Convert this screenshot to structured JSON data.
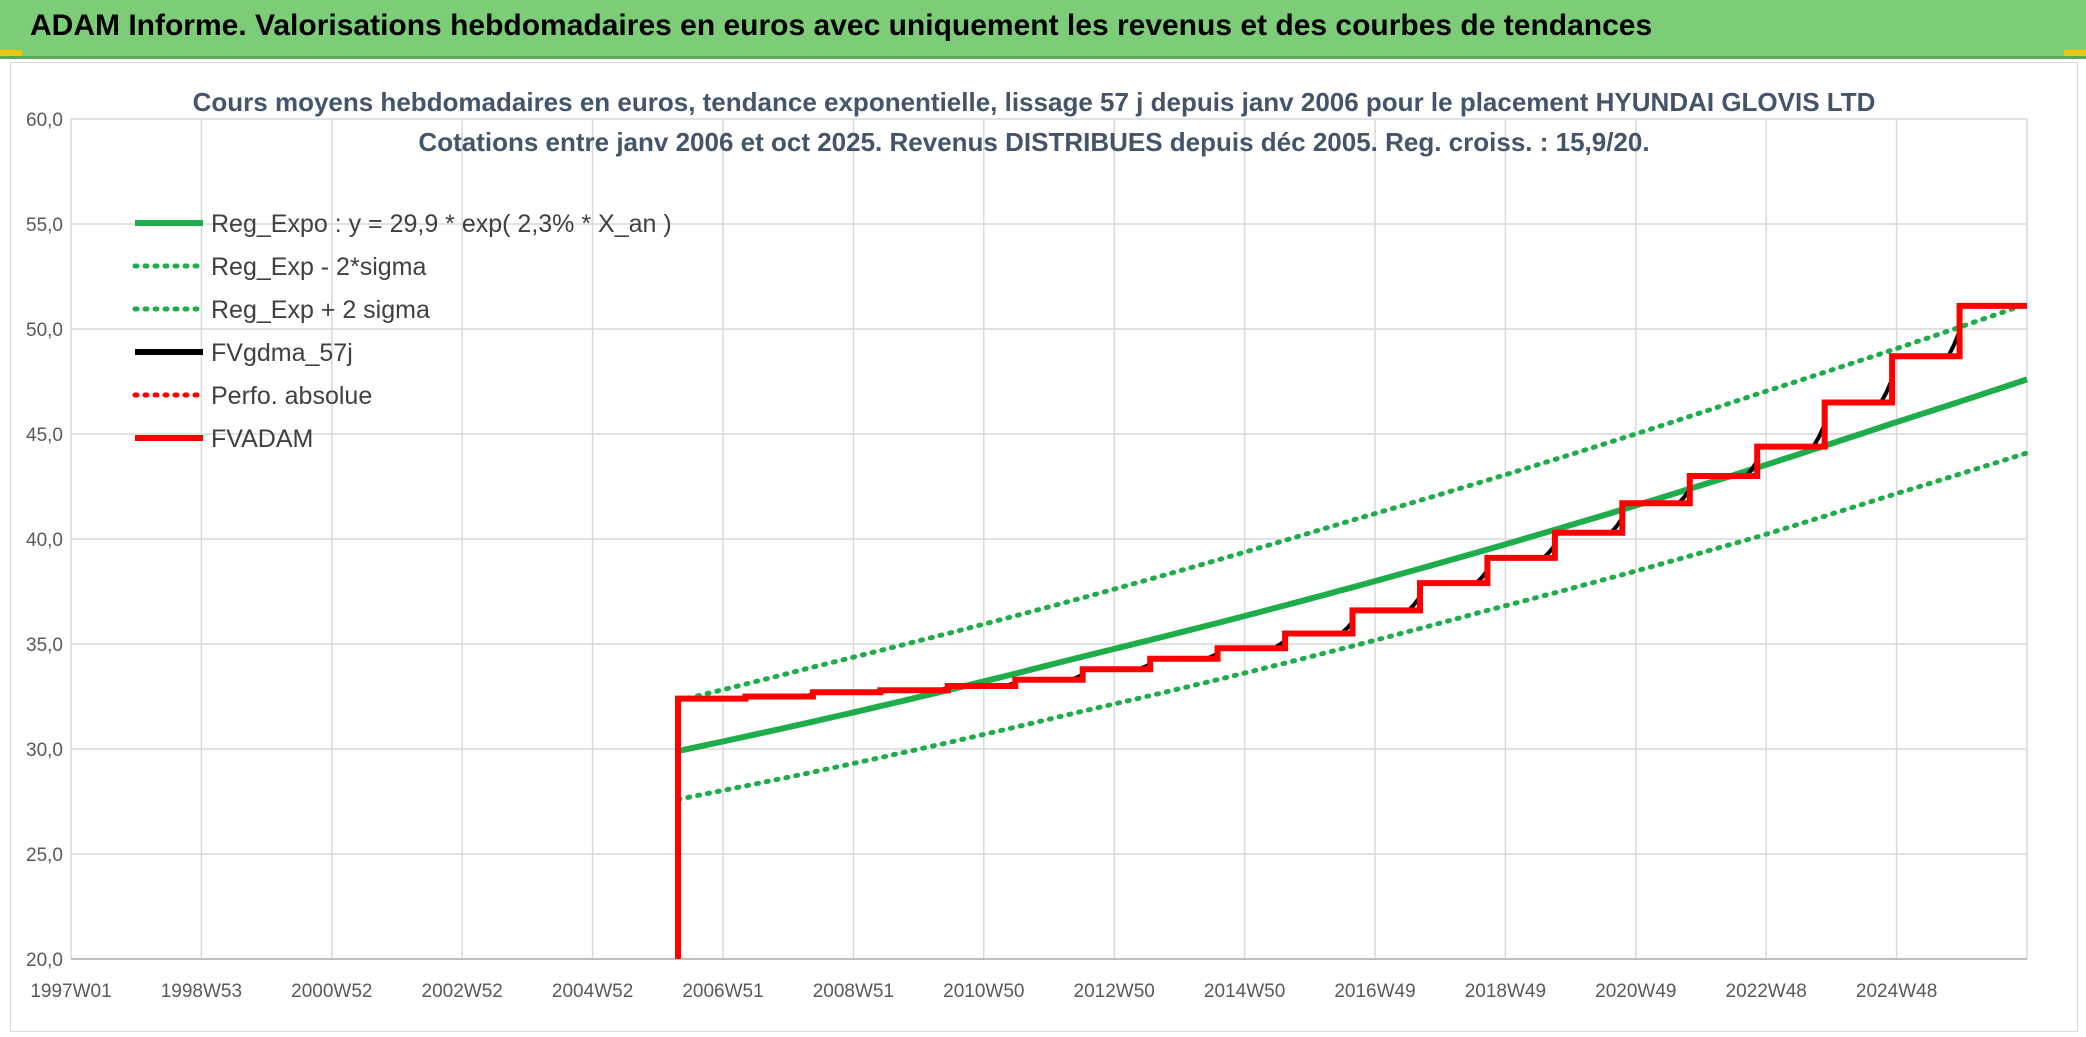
{
  "header": {
    "title": "ADAM Informe. Valorisations hebdomadaires en euros avec uniquement les revenus et des courbes de tendances"
  },
  "colors": {
    "header_bg": "#7dcc78",
    "green": "#1fad4b",
    "red": "#ff0000",
    "black": "#000000",
    "grid": "#d9d9d9"
  },
  "chart_data": {
    "type": "line",
    "title_lines": [
      "Cours moyens hebdomadaires en euros, tendance exponentielle, lissage 57 j depuis janv 2006 pour le placement HYUNDAI GLOVIS LTD",
      "Cotations entre janv 2006 et oct 2025. Revenus DISTRIBUES depuis déc 2005. Reg. croiss. : 15,9/20."
    ],
    "xlabel": "",
    "ylabel": "",
    "x_tick_labels": [
      "1997W01",
      "1998W53",
      "2000W52",
      "2002W52",
      "2004W52",
      "2006W51",
      "2008W51",
      "2010W50",
      "2012W50",
      "2014W50",
      "2016W49",
      "2018W49",
      "2020W49",
      "2022W48",
      "2024W48"
    ],
    "x_range_years": [
      1997.0,
      2026.0
    ],
    "ylim": [
      20,
      60
    ],
    "y_ticks": [
      "20,0",
      "25,0",
      "30,0",
      "35,0",
      "40,0",
      "45,0",
      "50,0",
      "55,0",
      "60,0"
    ],
    "grid": true,
    "legend_position": "top-left",
    "series": [
      {
        "name": "Reg_Expo : y = 29,9 * exp( 2,3% *  X_an )",
        "style": "solid",
        "color": "#1fad4b",
        "x": [
          2006.0,
          2008.0,
          2010.0,
          2012.0,
          2014.0,
          2016.0,
          2018.0,
          2020.0,
          2022.0,
          2024.0,
          2026.0
        ],
        "y": [
          29.9,
          31.3,
          32.8,
          34.4,
          36.0,
          37.7,
          39.5,
          41.4,
          43.4,
          45.5,
          47.6
        ]
      },
      {
        "name": "Reg_Exp - 2*sigma",
        "style": "dotted",
        "color": "#1fad4b",
        "x": [
          2006.0,
          2008.0,
          2010.0,
          2012.0,
          2014.0,
          2016.0,
          2018.0,
          2020.0,
          2022.0,
          2024.0,
          2026.0
        ],
        "y": [
          27.6,
          28.9,
          30.3,
          31.8,
          33.3,
          34.9,
          36.6,
          38.3,
          40.1,
          42.1,
          44.1
        ]
      },
      {
        "name": "Reg_Exp + 2 sigma",
        "style": "dotted",
        "color": "#1fad4b",
        "x": [
          2006.0,
          2008.0,
          2010.0,
          2012.0,
          2014.0,
          2016.0,
          2018.0,
          2020.0,
          2022.0,
          2024.0,
          2026.0
        ],
        "y": [
          32.3,
          33.9,
          35.5,
          37.2,
          39.0,
          40.9,
          42.8,
          44.8,
          46.9,
          49.0,
          51.2
        ]
      },
      {
        "name": "FVgdma_57j",
        "style": "solid",
        "color": "#000000",
        "x": [
          2006.0,
          2025.0
        ],
        "y": [
          32.4,
          51.1
        ]
      },
      {
        "name": "Perfo. absolue",
        "style": "dotted",
        "color": "#ff0000",
        "x": [],
        "y": []
      },
      {
        "name": "FVADAM",
        "style": "steps",
        "color": "#ff0000",
        "x": [
          2006.0,
          2006.0,
          2007.0,
          2008.0,
          2009.0,
          2010.0,
          2011.0,
          2012.0,
          2013.0,
          2014.0,
          2015.0,
          2016.0,
          2017.0,
          2018.0,
          2019.0,
          2020.0,
          2021.0,
          2022.0,
          2023.0,
          2024.0,
          2025.0,
          2026.0
        ],
        "y": [
          20.0,
          32.4,
          32.5,
          32.7,
          32.8,
          33.0,
          33.3,
          33.8,
          34.3,
          34.8,
          35.5,
          36.6,
          37.9,
          39.1,
          40.3,
          41.7,
          43.0,
          44.4,
          46.5,
          48.7,
          51.1,
          51.1
        ]
      }
    ]
  }
}
